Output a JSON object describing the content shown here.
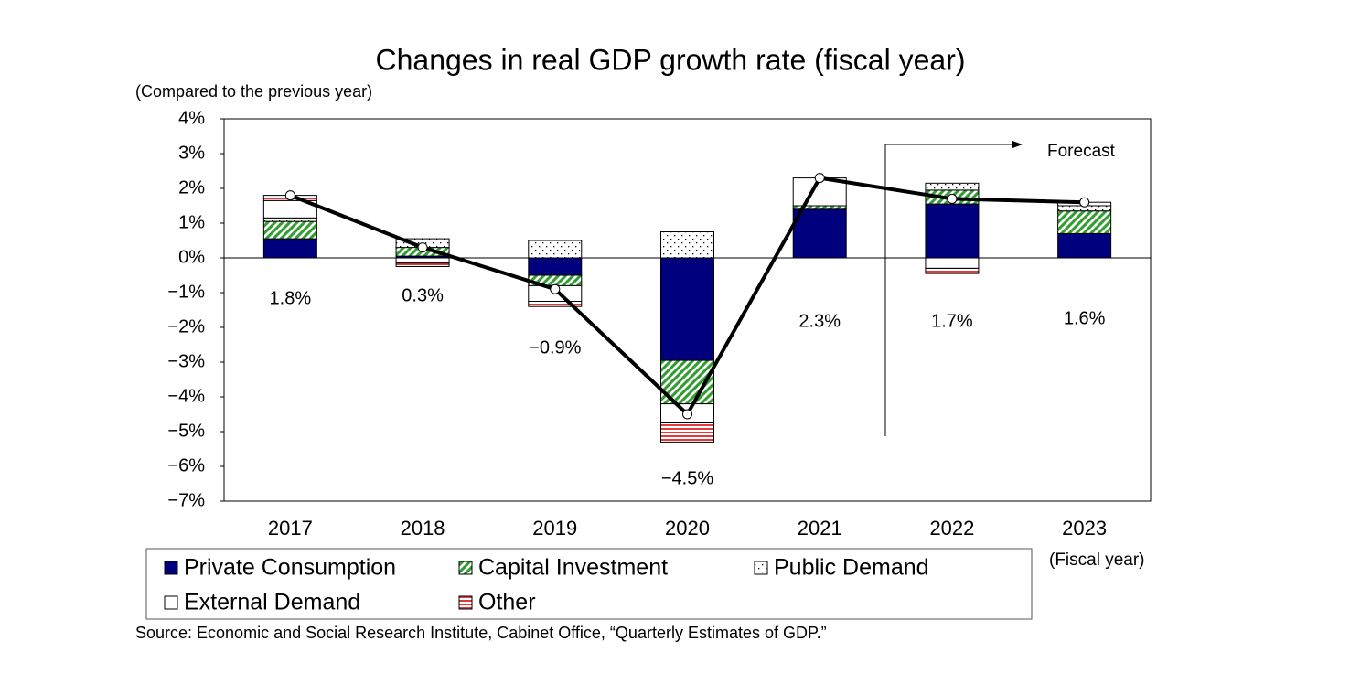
{
  "chart_data": {
    "type": "stacked-bar-line",
    "title": "Changes in real GDP growth rate (fiscal year)",
    "y_label": "(Compared to the previous year)",
    "x_label": "(Fiscal year)",
    "source": "Source: Economic and Social Research Institute, Cabinet Office, “Quarterly Estimates of GDP.”",
    "annotation": "Forecast",
    "categories": [
      "2017",
      "2018",
      "2019",
      "2020",
      "2021",
      "2022",
      "2023"
    ],
    "series": [
      {
        "name": "Private Consumption",
        "color": "#00007f",
        "values": [
          0.55,
          0.05,
          -0.5,
          -2.95,
          1.4,
          1.55,
          0.7
        ]
      },
      {
        "name": "Capital Investment",
        "color": "#2e9e2e",
        "values": [
          0.5,
          0.25,
          -0.3,
          -1.25,
          0.1,
          0.4,
          0.65
        ]
      },
      {
        "name": "Public Demand",
        "color": "#000000",
        "values": [
          0.1,
          0.25,
          0.5,
          0.75,
          0,
          0.2,
          0.15
        ]
      },
      {
        "name": "External Demand",
        "color": "#ffffff",
        "values": [
          0.5,
          -0.15,
          -0.45,
          -0.55,
          0.8,
          -0.3,
          0.1
        ]
      },
      {
        "name": "Other",
        "color": "#e23a3a",
        "values": [
          0.15,
          -0.1,
          -0.15,
          -0.55,
          0,
          -0.15,
          0
        ]
      }
    ],
    "totals": {
      "color": "#000000",
      "values": [
        1.8,
        0.3,
        -0.9,
        -4.5,
        2.3,
        1.7,
        1.6
      ],
      "value_labels": [
        "1.8%",
        "0.3%",
        "−0.9%",
        "−4.5%",
        "2.3%",
        "1.7%",
        "1.6%"
      ]
    },
    "ylim": [
      -7,
      4
    ],
    "yticks": [
      {
        "value": -7,
        "label": "−7%"
      },
      {
        "value": -6,
        "label": "−6%"
      },
      {
        "value": -5,
        "label": "−5%"
      },
      {
        "value": -4,
        "label": "−4%"
      },
      {
        "value": -3,
        "label": "−3%"
      },
      {
        "value": -2,
        "label": "−2%"
      },
      {
        "value": -1,
        "label": "−1%"
      },
      {
        "value": 0,
        "label": "0%"
      },
      {
        "value": 1,
        "label": "1%"
      },
      {
        "value": 2,
        "label": "2%"
      },
      {
        "value": 3,
        "label": "3%"
      },
      {
        "value": 4,
        "label": "4%"
      }
    ],
    "grid": false
  }
}
